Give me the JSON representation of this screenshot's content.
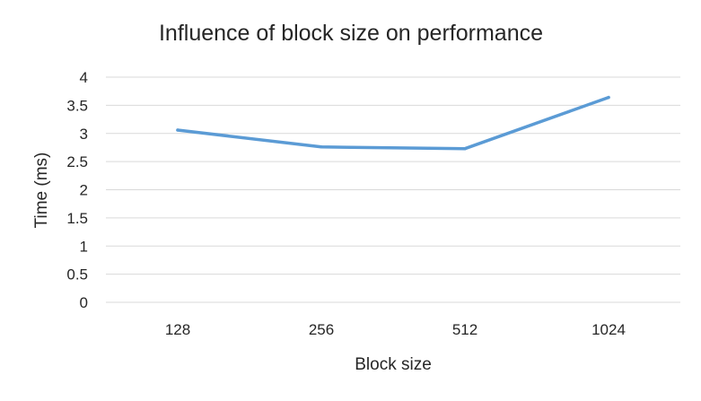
{
  "chart_data": {
    "type": "line",
    "title": "Influence of block size on performance",
    "xlabel": "Block size",
    "ylabel": "Time (ms)",
    "categories": [
      "128",
      "256",
      "512",
      "1024"
    ],
    "series": [
      {
        "values": [
          3.06,
          2.76,
          2.73,
          3.64
        ],
        "color": "#5b9bd5"
      }
    ],
    "ylim": [
      0,
      4
    ],
    "yticks": [
      "0",
      "0.5",
      "1",
      "1.5",
      "2",
      "2.5",
      "3",
      "3.5",
      "4"
    ],
    "grid": true,
    "legend": "none"
  }
}
